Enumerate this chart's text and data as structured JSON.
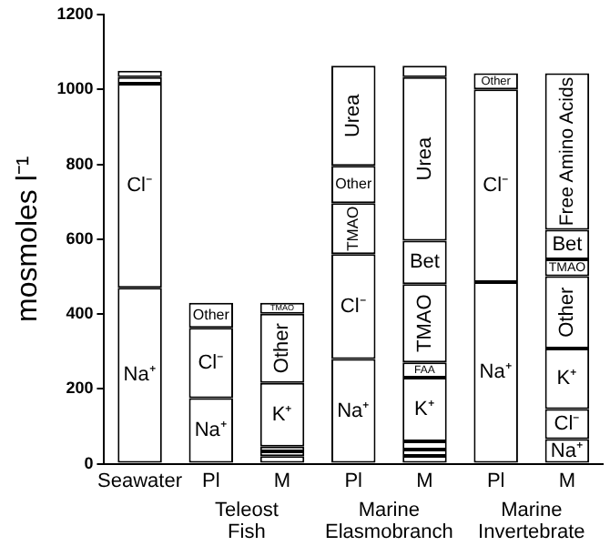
{
  "chart_data": {
    "type": "bar",
    "stacked": true,
    "ylabel": "mosmoles l⁻¹",
    "categories": [
      "Seawater",
      "Pl",
      "M",
      "Pl",
      "M",
      "Pl",
      "M"
    ],
    "ylim": [
      0,
      1200
    ],
    "yticks": [
      0,
      200,
      400,
      600,
      800,
      1000,
      1200
    ],
    "grid": false,
    "legend": false,
    "annotations": [
      "Teleost Fish",
      "Marine Elasmobranch",
      "Marine Invertebrate"
    ],
    "series": [
      {
        "color": "#ffffff",
        "values": [
          470,
          175,
          20,
          280,
          21,
          485,
          66
        ],
        "value_labels": [
          "Na⁺",
          "Na⁺",
          null,
          "Na⁺",
          null,
          "Na⁺",
          "Na⁺"
        ]
      },
      {
        "color": "#ffffff",
        "values": [
          545,
          188,
          13,
          280,
          17,
          515,
          80
        ],
        "value_labels": [
          "Cl⁻",
          "Cl⁻",
          null,
          "Cl⁻",
          null,
          "Cl⁻",
          "Cl⁻"
        ]
      },
      {
        "color": "#ffffff",
        "values": [
          18,
          67,
          13,
          136,
          22,
          43,
          162
        ],
        "value_labels": [
          null,
          "Other",
          null,
          "TMAO",
          null,
          "Other",
          "K⁺"
        ]
      },
      {
        "color": "#ffffff",
        "values": [
          17,
          null,
          170,
          100,
          170,
          null,
          193
        ],
        "value_labels": [
          null,
          null,
          "K⁺",
          "Other",
          "K⁺",
          null,
          "Other"
        ]
      },
      {
        "color": "#ffffff",
        "values": [
          null,
          null,
          185,
          267,
          41,
          null,
          45
        ],
        "value_labels": [
          null,
          null,
          "Other",
          "Urea",
          "FAA",
          null,
          "TMAO"
        ]
      },
      {
        "color": "#ffffff",
        "values": [
          null,
          null,
          29,
          null,
          209,
          null,
          79
        ],
        "value_labels": [
          null,
          null,
          "TMAO",
          null,
          "TMAO",
          null,
          "Bet"
        ]
      },
      {
        "color": "#ffffff",
        "values": [
          null,
          null,
          null,
          null,
          116,
          null,
          418
        ],
        "value_labels": [
          null,
          null,
          null,
          null,
          "Bet",
          null,
          "Free Amino Acids"
        ]
      },
      {
        "color": "#ffffff",
        "values": [
          null,
          null,
          null,
          null,
          437,
          null,
          null
        ],
        "value_labels": [
          null,
          null,
          null,
          null,
          "Urea",
          null,
          null
        ]
      },
      {
        "color": "#ffffff",
        "values": [
          null,
          null,
          null,
          null,
          30,
          null,
          null
        ],
        "value_labels": [
          null,
          null,
          null,
          null,
          null,
          null,
          null
        ]
      }
    ]
  }
}
